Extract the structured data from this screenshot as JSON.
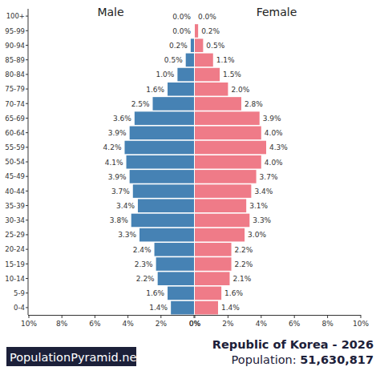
{
  "chart_data": {
    "type": "bar",
    "orientation": "horizontal",
    "title": "Republic of Korea - 2026",
    "subtitle": "Population: 51,630,817",
    "annotations": [
      "PopulationPyramid.net"
    ],
    "categories": [
      "0-4",
      "5-9",
      "10-14",
      "15-19",
      "20-24",
      "25-29",
      "30-34",
      "35-39",
      "40-44",
      "45-49",
      "50-54",
      "55-59",
      "60-64",
      "65-69",
      "70-74",
      "75-79",
      "80-84",
      "85-89",
      "90-94",
      "95-99",
      "100+"
    ],
    "series": [
      {
        "name": "Male",
        "color": "#4682b4",
        "values": [
          1.4,
          1.6,
          2.2,
          2.3,
          2.4,
          3.3,
          3.8,
          3.4,
          3.7,
          3.9,
          4.1,
          4.2,
          3.9,
          3.6,
          2.5,
          1.6,
          1.0,
          0.5,
          0.2,
          0.0,
          0.0
        ],
        "value_labels": [
          "1.4%",
          "1.6%",
          "2.2%",
          "2.3%",
          "2.4%",
          "3.3%",
          "3.8%",
          "3.4%",
          "3.7%",
          "3.9%",
          "4.1%",
          "4.2%",
          "3.9%",
          "3.6%",
          "2.5%",
          "1.6%",
          "1.0%",
          "0.5%",
          "0.2%",
          "0.0%",
          "0.0%"
        ]
      },
      {
        "name": "Female",
        "color": "#ef7b88",
        "values": [
          1.4,
          1.6,
          2.1,
          2.2,
          2.2,
          3.0,
          3.3,
          3.1,
          3.4,
          3.7,
          4.0,
          4.3,
          4.0,
          3.9,
          2.8,
          2.0,
          1.5,
          1.1,
          0.5,
          0.2,
          0.0
        ],
        "value_labels": [
          "1.4%",
          "1.6%",
          "2.1%",
          "2.2%",
          "2.2%",
          "3.0%",
          "3.3%",
          "3.1%",
          "3.4%",
          "3.7%",
          "4.0%",
          "4.3%",
          "4.0%",
          "3.9%",
          "2.8%",
          "2.0%",
          "1.5%",
          "1.1%",
          "0.5%",
          "0.2%",
          "0.0%"
        ]
      }
    ],
    "xlim": [
      0,
      10
    ],
    "xticks": [
      {
        "value": 0,
        "label": "0%"
      },
      {
        "value": 2,
        "label": "2%"
      },
      {
        "value": 4,
        "label": "4%"
      },
      {
        "value": 6,
        "label": "6%"
      },
      {
        "value": 8,
        "label": "8%"
      },
      {
        "value": 10,
        "label": "10%"
      }
    ],
    "data_labels": true,
    "grid": false
  }
}
